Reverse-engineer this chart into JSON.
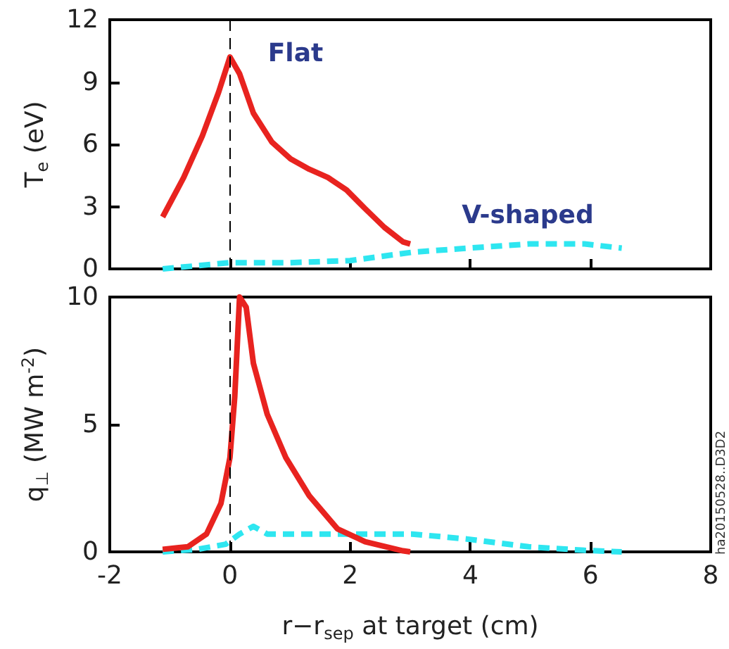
{
  "chart_data": [
    {
      "type": "line",
      "ylabel": "T$_{e}$ (eV)",
      "xlim": [
        -2,
        8
      ],
      "xticks": [
        -2,
        0,
        2,
        4,
        6,
        8
      ],
      "ylim": [
        0,
        12
      ],
      "yticks": [
        0,
        3,
        6,
        9,
        12
      ],
      "tick_labels": "y",
      "marker": "none",
      "grid": false,
      "series": [
        {
          "color": "#e8231f",
          "line_style": "solid",
          "x": [
            -1.12,
            -0.77,
            -0.46,
            -0.19,
            0,
            0.16,
            0.39,
            0.7,
            1.01,
            1.32,
            1.63,
            1.94,
            2.25,
            2.57,
            2.88,
            3.0
          ],
          "values": [
            2.5,
            4.4,
            6.4,
            8.5,
            10.2,
            9.4,
            7.5,
            6.1,
            5.3,
            4.8,
            4.4,
            3.8,
            2.9,
            2.0,
            1.3,
            1.2
          ]
        },
        {
          "color": "#2ee6f0",
          "line_style": "dashed",
          "x": [
            -1.12,
            0,
            1.0,
            2.0,
            3.03,
            3.96,
            4.97,
            5.9,
            6.52
          ],
          "values": [
            0,
            0.3,
            0.3,
            0.4,
            0.8,
            1.0,
            1.2,
            1.2,
            1.0
          ]
        }
      ],
      "ref_lines": [
        {
          "axis": "x",
          "value": 0,
          "color": "#000000",
          "line_style": "dashed"
        }
      ],
      "annotations": [
        "Flat",
        "V-shaped"
      ]
    },
    {
      "type": "line",
      "xlabel": "r−r$_{sep}$ at target (cm)",
      "ylabel": "q$_{⊥}$ (MW m$^{-2}$)",
      "xlim": [
        -2,
        8
      ],
      "xticks": [
        -2,
        0,
        2,
        4,
        6,
        8
      ],
      "ylim": [
        0,
        10
      ],
      "yticks": [
        0,
        5,
        10
      ],
      "marker": "none",
      "grid": false,
      "series": [
        {
          "color": "#e8231f",
          "line_style": "solid",
          "x": [
            -1.12,
            -0.7,
            -0.39,
            -0.15,
            0,
            0.08,
            0.16,
            0.27,
            0.39,
            0.62,
            0.93,
            1.32,
            1.79,
            2.25,
            2.88,
            3.0
          ],
          "values": [
            0.1,
            0.2,
            0.7,
            1.9,
            3.7,
            6.1,
            10.0,
            9.6,
            7.4,
            5.4,
            3.7,
            2.2,
            0.9,
            0.4,
            0.04,
            0
          ]
        },
        {
          "color": "#2ee6f0",
          "line_style": "dashed",
          "x": [
            -1.12,
            -0.54,
            -0.07,
            0.16,
            0.39,
            0.62,
            1.01,
            2.02,
            3.03,
            3.96,
            4.97,
            5.9,
            6.52
          ],
          "values": [
            0,
            0.1,
            0.3,
            0.7,
            1.0,
            0.7,
            0.7,
            0.7,
            0.7,
            0.5,
            0.2,
            0.06,
            0
          ]
        }
      ],
      "ref_lines": [
        {
          "axis": "x",
          "value": 0,
          "color": "#000000",
          "line_style": "dashed"
        }
      ],
      "annotations": [
        "ha20150528..D3D2"
      ]
    }
  ]
}
